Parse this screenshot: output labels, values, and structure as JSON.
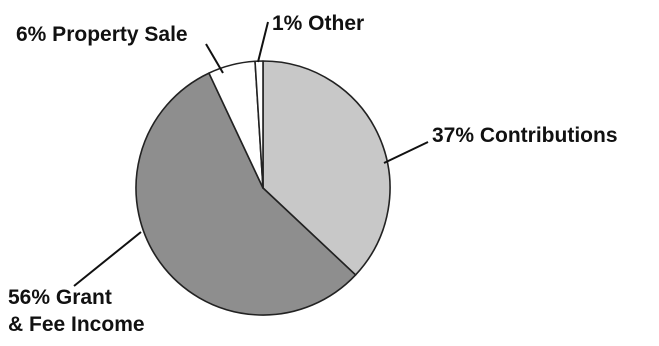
{
  "chart_data": {
    "type": "pie",
    "slices": [
      {
        "label_lines": [
          "37% Contributions"
        ],
        "value": 37,
        "color": "#c8c8c8"
      },
      {
        "label_lines": [
          "56% Grant",
          "& Fee Income"
        ],
        "value": 56,
        "color": "#8e8e8e"
      },
      {
        "label_lines": [
          "6% Property Sale"
        ],
        "value": 6,
        "color": "#ffffff"
      },
      {
        "label_lines": [
          "1% Other"
        ],
        "value": 1,
        "color": "#ffffff"
      }
    ],
    "start_position": "12 o'clock",
    "direction": "clockwise",
    "outline_color": "#222222",
    "leader_color": "#111111",
    "legend": "none"
  }
}
